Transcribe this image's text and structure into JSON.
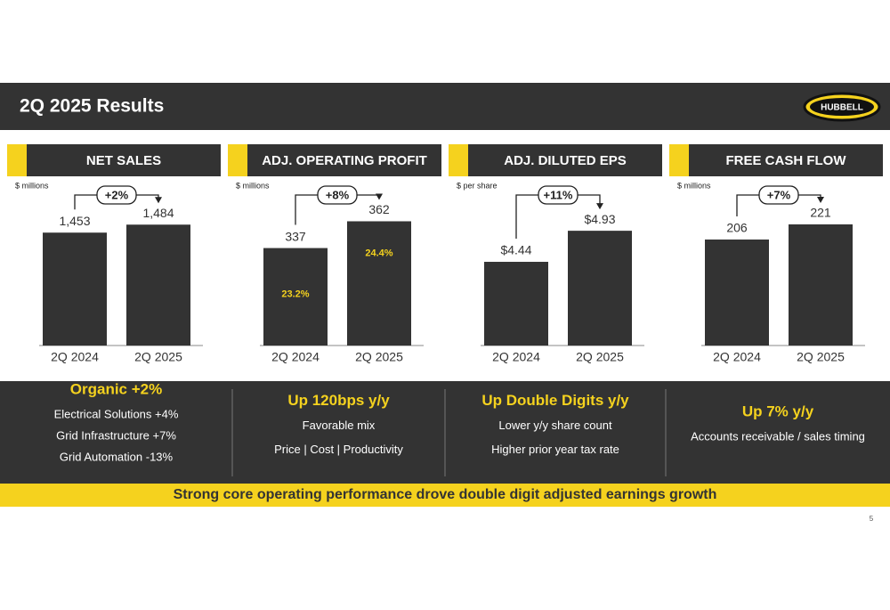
{
  "header": {
    "title": "2Q 2025 Results",
    "logo": "HUBBELL"
  },
  "chart_data": [
    {
      "type": "bar",
      "title": "NET SALES",
      "unit": "$ millions",
      "categories": [
        "2Q 2024",
        "2Q 2025"
      ],
      "values": [
        1453,
        1484
      ],
      "value_labels": [
        "1,453",
        "1,484"
      ],
      "change": "+2%",
      "color": "#333333",
      "ylim": [
        1015,
        1630
      ]
    },
    {
      "type": "bar",
      "title": "ADJ. OPERATING PROFIT",
      "unit": "$ millions",
      "categories": [
        "2Q 2024",
        "2Q 2025"
      ],
      "values": [
        337,
        362
      ],
      "inner_labels": [
        "23.2%",
        "24.4%"
      ],
      "change": "+8%",
      "color": "#333333",
      "ylim": [
        246,
        394
      ]
    },
    {
      "type": "bar",
      "title": "ADJ. DILUTED EPS",
      "unit": "$ per share",
      "categories": [
        "2Q 2024",
        "2Q 2025"
      ],
      "values": [
        4.44,
        4.93
      ],
      "value_labels": [
        "$4.44",
        "$4.93"
      ],
      "change": "+11%",
      "color": "#333333",
      "ylim": [
        3.12,
        5.62
      ]
    },
    {
      "type": "bar",
      "title": "FREE CASH FLOW",
      "unit": "$ millions",
      "categories": [
        "2Q 2024",
        "2Q 2025"
      ],
      "values": [
        206,
        221
      ],
      "change": "+7%",
      "color": "#333333",
      "ylim": [
        101,
        258
      ]
    }
  ],
  "highlights": [
    {
      "title": "Organic +2%",
      "lines": [
        "Electrical Solutions +4%",
        "Grid Infrastructure +7%",
        "Grid Automation -13%"
      ]
    },
    {
      "title": "Up 120bps y/y",
      "lines": [
        "Favorable mix",
        "Price | Cost | Productivity"
      ]
    },
    {
      "title": "Up Double Digits y/y",
      "lines": [
        "Lower y/y share count",
        "Higher prior year tax rate"
      ]
    },
    {
      "title": "Up 7% y/y",
      "lines": [
        "Accounts receivable / sales timing"
      ]
    }
  ],
  "footer": "Strong core operating performance drove double digit adjusted earnings growth",
  "page_number": "5"
}
